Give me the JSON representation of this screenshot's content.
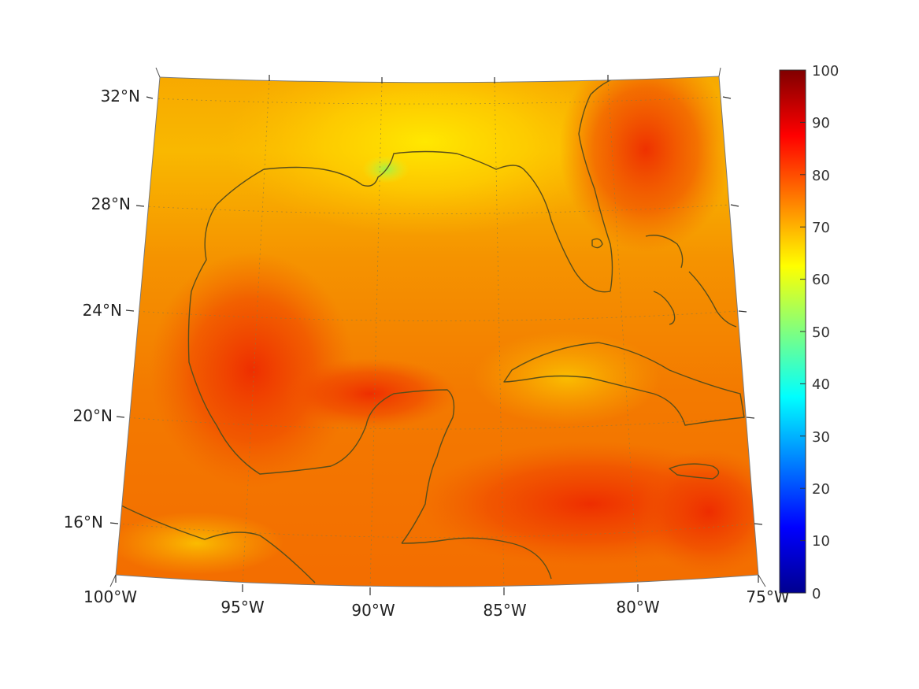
{
  "map": {
    "projection": "conic",
    "lat_ticks": [
      "32°N",
      "28°N",
      "24°N",
      "20°N",
      "16°N"
    ],
    "lon_ticks": [
      "100°W",
      "95°W",
      "90°W",
      "85°W",
      "80°W",
      "75°W"
    ],
    "grid": "dotted",
    "coastline_color": "#5a4e1a",
    "colormap": "jet"
  },
  "colorbar": {
    "ticks": [
      "0",
      "10",
      "20",
      "30",
      "40",
      "50",
      "60",
      "70",
      "80",
      "90",
      "100"
    ],
    "min": 0,
    "max": 100
  }
}
